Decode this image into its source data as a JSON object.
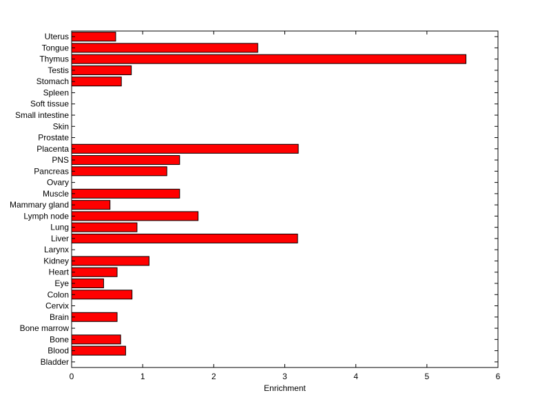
{
  "chart_data": {
    "type": "bar",
    "orientation": "horizontal",
    "xlabel": "Enrichment",
    "ylabel": "",
    "title": "",
    "xlim": [
      0,
      6
    ],
    "xticks": [
      0,
      1,
      2,
      3,
      4,
      5,
      6
    ],
    "grid": false,
    "legend": "none",
    "bar_color": "#ff0000",
    "bar_edge_color": "#000000",
    "categories": [
      "Uterus",
      "Tongue",
      "Thymus",
      "Testis",
      "Stomach",
      "Spleen",
      "Soft tissue",
      "Small intestine",
      "Skin",
      "Prostate",
      "Placenta",
      "PNS",
      "Pancreas",
      "Ovary",
      "Muscle",
      "Mammary gland",
      "Lymph node",
      "Lung",
      "Liver",
      "Larynx",
      "Kidney",
      "Heart",
      "Eye",
      "Colon",
      "Cervix",
      "Brain",
      "Bone marrow",
      "Bone",
      "Blood",
      "Bladder"
    ],
    "values": [
      0.62,
      2.62,
      5.55,
      0.84,
      0.7,
      0,
      0,
      0,
      0,
      0,
      3.19,
      1.52,
      1.34,
      0,
      1.52,
      0.54,
      1.78,
      0.92,
      3.18,
      0,
      1.09,
      0.64,
      0.45,
      0.85,
      0,
      0.64,
      0,
      0.69,
      0.76,
      0
    ]
  }
}
